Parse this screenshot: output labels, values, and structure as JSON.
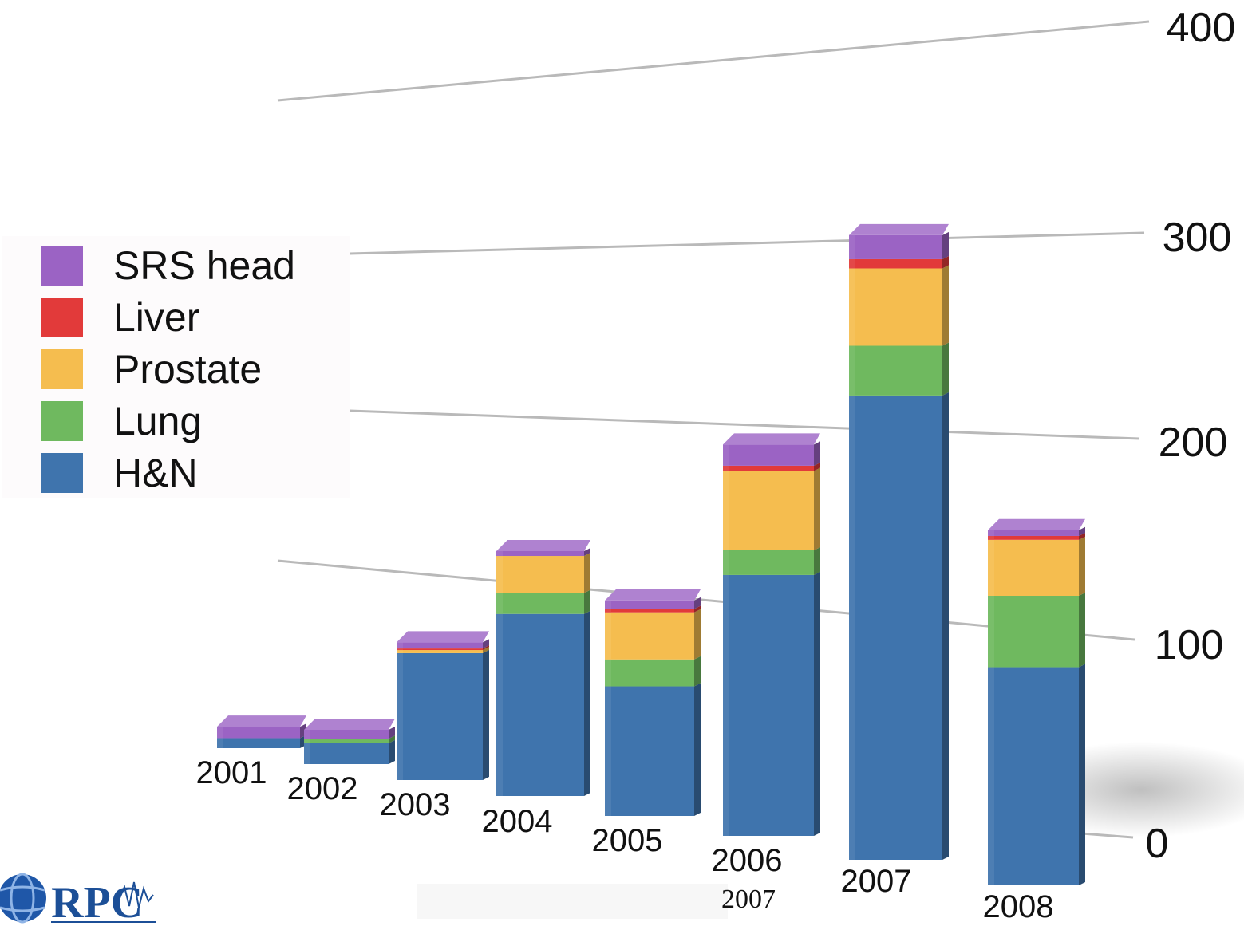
{
  "chart_data": {
    "type": "bar",
    "stacked": true,
    "three_d": true,
    "categories": [
      "2001",
      "2002",
      "2003",
      "2004",
      "2005",
      "2006",
      "2007",
      "2008"
    ],
    "series": [
      {
        "name": "H&N",
        "color": "#3f74ad",
        "values": [
          7,
          14,
          82,
          113,
          77,
          148,
          252,
          113
        ]
      },
      {
        "name": "Lung",
        "color": "#6fb95f",
        "values": [
          0,
          3,
          0,
          13,
          16,
          14,
          27,
          37
        ]
      },
      {
        "name": "Prostate",
        "color": "#f5bd4f",
        "values": [
          0,
          0,
          2,
          23,
          28,
          45,
          42,
          29
        ]
      },
      {
        "name": "Liver",
        "color": "#e23a3a",
        "values": [
          0,
          0,
          1,
          0,
          2,
          3,
          5,
          2
        ]
      },
      {
        "name": "SRS head",
        "color": "#9b63c4",
        "values": [
          8,
          6,
          4,
          3,
          5,
          12,
          13,
          3
        ]
      }
    ],
    "yticks": [
      0,
      100,
      200,
      300,
      400
    ],
    "ylim": [
      0,
      400
    ],
    "legend_position": "left",
    "grid": true
  },
  "footer": {
    "logo_text": "RPC",
    "caption": "2007"
  },
  "icons": {
    "logo": "globe-logo-icon"
  }
}
